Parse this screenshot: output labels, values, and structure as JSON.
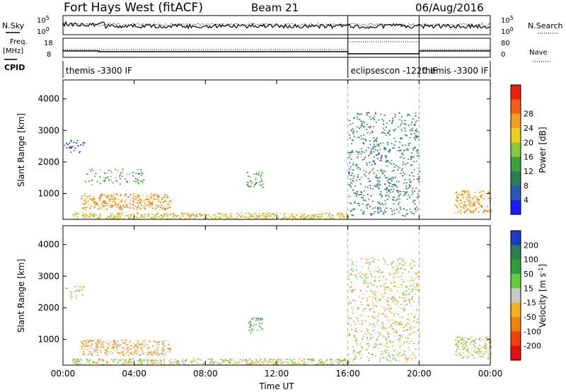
{
  "header": {
    "station": "Fort Hays West (fitACF)",
    "beam": "Beam 21",
    "date": "06/Aug/2016"
  },
  "top_panels": {
    "nsky_label": "N.Sky",
    "nsearch_label": "N.Search",
    "noise_ticks_left": [
      "10^5",
      "10^0"
    ],
    "noise_ticks_right": [
      "10^5",
      "10^0"
    ],
    "freq_label": "Freq.",
    "freq_unit": "[MHz]",
    "freq_ticks": [
      "18",
      "8"
    ],
    "nave_label": "Nave",
    "nave_ticks": [
      "80",
      "0"
    ],
    "cpid_label": "CPID",
    "cpid_segments": [
      {
        "label": "themis -3300 IF",
        "start_h": 0,
        "end_h": 16
      },
      {
        "label": "eclipsescon -1220 IF",
        "start_h": 16,
        "end_h": 20
      },
      {
        "label": "themis -3300 IF",
        "start_h": 20,
        "end_h": 24
      }
    ]
  },
  "chart_data": [
    {
      "type": "heatmap",
      "panel": "power",
      "xlabel": "",
      "ylabel": "Slant Range [km]",
      "xlim": [
        0,
        24
      ],
      "ylim": [
        180,
        4600
      ],
      "yticks": [
        "1000",
        "2000",
        "3000",
        "4000"
      ],
      "ytick_values": [
        1000,
        2000,
        3000,
        4000
      ],
      "colorbar_label": "Power [dB]",
      "colorbar_ticks": [
        "4",
        "8",
        "12",
        "16",
        "20",
        "24",
        "28"
      ],
      "colorbar_colors": [
        "#1a1aff",
        "#2a5ab8",
        "#2e7d5a",
        "#3aa040",
        "#8cc83c",
        "#e8d020",
        "#f0a020",
        "#f06018",
        "#e82010"
      ],
      "regions": [
        {
          "x": [
            0.0,
            1.2
          ],
          "y": [
            2300,
            2700
          ],
          "level": 1,
          "density": 0.25
        },
        {
          "x": [
            1.0,
            6.0
          ],
          "y": [
            500,
            1000
          ],
          "level": 6,
          "density": 0.55
        },
        {
          "x": [
            0.5,
            16.0
          ],
          "y": [
            200,
            400
          ],
          "level": 5,
          "density": 0.7
        },
        {
          "x": [
            1.2,
            4.5
          ],
          "y": [
            1300,
            1800
          ],
          "level": 3,
          "density": 0.2
        },
        {
          "x": [
            10.3,
            11.2
          ],
          "y": [
            1200,
            1700
          ],
          "level": 3,
          "density": 0.4
        },
        {
          "x": [
            16.0,
            20.0
          ],
          "y": [
            300,
            3600
          ],
          "level": 2,
          "density": 0.22
        },
        {
          "x": [
            22.0,
            24.0
          ],
          "y": [
            400,
            1100
          ],
          "level": 6,
          "density": 0.5
        }
      ]
    },
    {
      "type": "heatmap",
      "panel": "velocity",
      "xlabel": "Time UT",
      "ylabel": "Slant Range [km]",
      "xlim": [
        0,
        24
      ],
      "ylim": [
        180,
        4600
      ],
      "xticks": [
        "00:00",
        "04:00",
        "08:00",
        "12:00",
        "16:00",
        "20:00",
        "00:00"
      ],
      "yticks": [
        "1000",
        "2000",
        "3000",
        "4000"
      ],
      "ytick_values": [
        1000,
        2000,
        3000,
        4000
      ],
      "colorbar_label": "Velocity [m s^-1]",
      "colorbar_ticks": [
        "200",
        "100",
        "50",
        "15",
        "-15",
        "-50",
        "-100",
        "-200"
      ],
      "colorbar_colors": [
        "#1a3ac8",
        "#2f7e4e",
        "#2ea040",
        "#6cc83c",
        "#c8c8c8",
        "#f0b020",
        "#f08010",
        "#f04010",
        "#e01010"
      ],
      "regions": [
        {
          "x": [
            0.0,
            1.2
          ],
          "y": [
            2300,
            2700
          ],
          "level": 4,
          "density": 0.25
        },
        {
          "x": [
            1.0,
            6.0
          ],
          "y": [
            500,
            1000
          ],
          "level": 5,
          "density": 0.55
        },
        {
          "x": [
            0.5,
            16.0
          ],
          "y": [
            200,
            400
          ],
          "level": 4,
          "density": 0.7
        },
        {
          "x": [
            10.3,
            11.2
          ],
          "y": [
            1200,
            1700
          ],
          "level": 3,
          "density": 0.4
        },
        {
          "x": [
            16.0,
            20.0
          ],
          "y": [
            300,
            3600
          ],
          "level": 4,
          "density": 0.22
        },
        {
          "x": [
            22.0,
            24.0
          ],
          "y": [
            400,
            1100
          ],
          "level": 4,
          "density": 0.5
        }
      ]
    }
  ]
}
